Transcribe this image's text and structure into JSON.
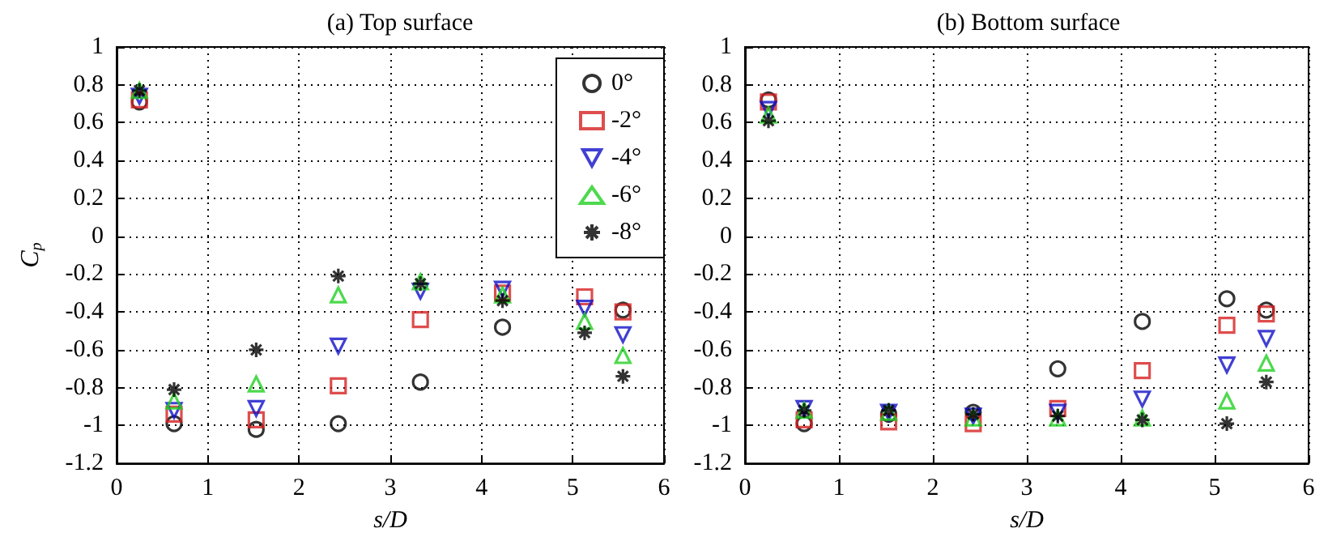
{
  "chart_data": [
    {
      "type": "scatter",
      "title": "(a) Top surface",
      "xlabel": "s/D",
      "ylabel": "C$_{p}$",
      "x": [
        0.25,
        0.63,
        1.53,
        2.43,
        3.33,
        4.23,
        5.13,
        5.55
      ],
      "xlim": [
        0,
        6
      ],
      "xticks": [
        0,
        1,
        2,
        3,
        4,
        5,
        6
      ],
      "ylim": [
        -1.2,
        1
      ],
      "yticks": [
        -1.2,
        -1,
        -0.8,
        -0.6,
        -0.4,
        -0.2,
        0,
        0.2,
        0.4,
        0.6,
        0.8,
        1
      ],
      "grid": true,
      "legend": "top right",
      "series": [
        {
          "name": "0°",
          "color": "#000000",
          "marker": "circle",
          "values": [
            0.71,
            -0.99,
            -1.02,
            -0.99,
            -0.77,
            -0.48,
            null,
            -0.39
          ]
        },
        {
          "name": "-2°",
          "color": "#d62020",
          "marker": "square",
          "values": [
            0.72,
            -0.94,
            -0.97,
            -0.79,
            -0.44,
            -0.3,
            -0.32,
            -0.4
          ]
        },
        {
          "name": "-4°",
          "color": "#1010c8",
          "marker": "triangle-down",
          "values": [
            0.74,
            -0.92,
            -0.91,
            -0.58,
            -0.29,
            -0.28,
            -0.38,
            -0.52
          ]
        },
        {
          "name": "-6°",
          "color": "#20d020",
          "marker": "triangle",
          "values": [
            0.77,
            -0.87,
            -0.78,
            -0.31,
            -0.24,
            -0.31,
            -0.45,
            -0.63
          ]
        },
        {
          "name": "-8°",
          "color": "#000000",
          "marker": "cross",
          "values": [
            0.77,
            -0.81,
            -0.6,
            -0.21,
            -0.25,
            -0.34,
            -0.51,
            -0.74
          ]
        }
      ]
    },
    {
      "type": "scatter",
      "title": "(b) Bottom surface",
      "xlabel": "s/D",
      "x": [
        0.25,
        0.63,
        1.53,
        2.43,
        3.33,
        4.23,
        5.13,
        5.55
      ],
      "xlim": [
        0,
        6
      ],
      "xticks": [
        0,
        1,
        2,
        3,
        4,
        5,
        6
      ],
      "ylim": [
        -1.2,
        1
      ],
      "yticks": [
        -1.2,
        -1,
        -0.8,
        -0.6,
        -0.4,
        -0.2,
        0,
        0.2,
        0.4,
        0.6,
        0.8,
        1
      ],
      "grid": true,
      "series": [
        {
          "color": "#000000",
          "marker": "circle",
          "values": [
            0.72,
            -0.99,
            -0.94,
            -0.93,
            -0.7,
            -0.45,
            -0.33,
            -0.39
          ]
        },
        {
          "color": "#d62020",
          "marker": "square",
          "values": [
            0.71,
            -0.97,
            -0.98,
            -0.99,
            -0.91,
            -0.71,
            -0.47,
            -0.41
          ]
        },
        {
          "color": "#1010c8",
          "marker": "triangle-down",
          "values": [
            0.67,
            -0.91,
            -0.93,
            -0.95,
            -0.93,
            -0.86,
            -0.68,
            -0.54
          ]
        },
        {
          "color": "#20d020",
          "marker": "triangle",
          "values": [
            0.64,
            -0.92,
            -0.93,
            -0.96,
            -0.96,
            -0.96,
            -0.87,
            -0.67
          ]
        },
        {
          "color": "#000000",
          "marker": "cross",
          "values": [
            0.61,
            -0.92,
            -0.92,
            -0.94,
            -0.95,
            -0.97,
            -0.99,
            -0.77
          ]
        }
      ]
    }
  ]
}
